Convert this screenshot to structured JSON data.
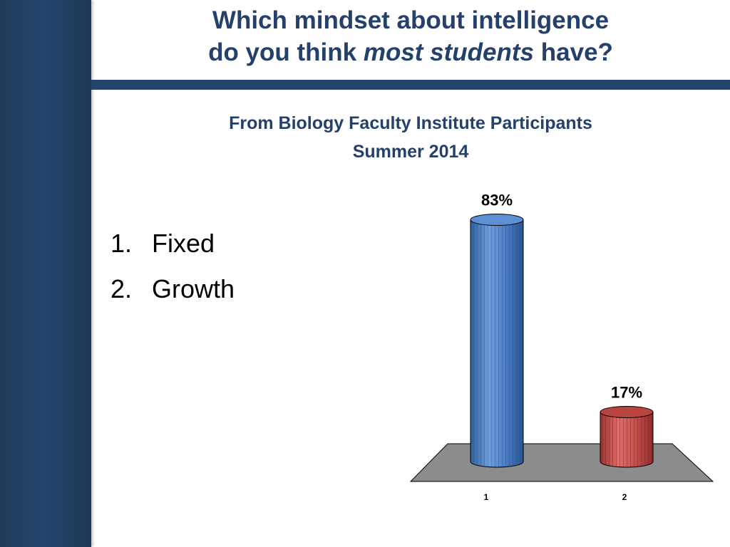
{
  "slide": {
    "title_line1": "Which mindset about intelligence",
    "title_line2_pre": "do you think ",
    "title_line2_em": "most students",
    "title_line2_post": " have?",
    "subtitle_line1": "From Biology Faculty Institute Participants",
    "subtitle_line2": "Summer 2014"
  },
  "options": [
    {
      "number": "1.",
      "label": "Fixed"
    },
    {
      "number": "2.",
      "label": "Growth"
    }
  ],
  "colors": {
    "sidebar": "#24466c",
    "title_text": "#24406b",
    "bar_fixed": "#4a7ec3",
    "bar_growth": "#c0504d",
    "floor": "#8c8c8c"
  },
  "chart_data": {
    "type": "bar",
    "categories": [
      "1",
      "2"
    ],
    "values": [
      83,
      17
    ],
    "data_labels": [
      "83%",
      "17%"
    ],
    "ylim": [
      0,
      100
    ],
    "style": "3d-cylinder"
  }
}
